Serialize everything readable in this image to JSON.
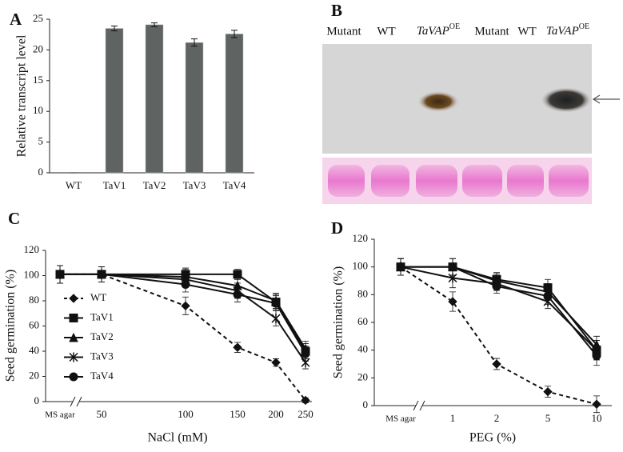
{
  "chart_data": [
    {
      "type": "bar",
      "panel": "A",
      "ylabel": "Relative transcript level",
      "categories": [
        "WT",
        "TaV1",
        "TaV2",
        "TaV3",
        "TaV4"
      ],
      "values": [
        0,
        23.5,
        24.1,
        21.2,
        22.6
      ],
      "errors": [
        0,
        0.4,
        0.3,
        0.6,
        0.6
      ],
      "color": "#5f6462",
      "ylim": [
        0,
        25
      ],
      "yticks": [
        0,
        5,
        10,
        15,
        20,
        25
      ]
    },
    {
      "type": "blot",
      "panel": "B",
      "lanes": [
        "Mutant",
        "WT",
        {
          "text": "TaVAP",
          "sup": "OE"
        },
        "Mutant",
        "WT",
        {
          "text": "TaVAP",
          "sup": "OE"
        }
      ]
    },
    {
      "type": "line",
      "panel": "C",
      "ylabel": "Seed germination (%)",
      "xlabel": "NaCl (mM)",
      "categories": [
        "MS agar",
        "50",
        "100",
        "150",
        "200",
        "250"
      ],
      "ylim": [
        0,
        120
      ],
      "yticks": [
        0,
        20,
        40,
        60,
        80,
        100,
        120
      ],
      "legend": "center left",
      "series": [
        {
          "name": "WT",
          "color": "#111",
          "marker": "diamond",
          "dashed": true,
          "values": [
            101,
            101,
            76,
            43,
            31,
            1
          ],
          "errors": [
            7,
            6,
            7,
            4,
            3,
            2
          ]
        },
        {
          "name": "TaV1",
          "color": "#111",
          "marker": "square",
          "dashed": false,
          "values": [
            101,
            101,
            101,
            101,
            79,
            40
          ],
          "errors": [
            7,
            6,
            5,
            4,
            6,
            6
          ]
        },
        {
          "name": "TaV2",
          "color": "#111",
          "marker": "triangle",
          "dashed": false,
          "values": [
            101,
            101,
            99,
            92,
            80,
            42
          ],
          "errors": [
            7,
            6,
            6,
            5,
            6,
            6
          ]
        },
        {
          "name": "TaV3",
          "color": "#111",
          "marker": "star",
          "dashed": false,
          "values": [
            101,
            101,
            97,
            88,
            66,
            31
          ],
          "errors": [
            7,
            6,
            6,
            6,
            6,
            5
          ]
        },
        {
          "name": "TaV4",
          "color": "#111",
          "marker": "circle",
          "dashed": false,
          "values": [
            101,
            101,
            93,
            85,
            78,
            38
          ],
          "errors": [
            7,
            6,
            6,
            6,
            6,
            6
          ]
        }
      ]
    },
    {
      "type": "line",
      "panel": "D",
      "ylabel": "Seed germination (%)",
      "xlabel": "PEG (%)",
      "categories": [
        "MS agar",
        "1",
        "2",
        "5",
        "10"
      ],
      "ylim": [
        0,
        120
      ],
      "yticks": [
        0,
        20,
        40,
        60,
        80,
        100,
        120
      ],
      "series": [
        {
          "name": "WT",
          "color": "#111",
          "marker": "diamond",
          "dashed": true,
          "values": [
            100,
            75,
            30,
            10,
            1
          ],
          "errors": [
            6,
            7,
            4,
            4,
            6
          ]
        },
        {
          "name": "TaV1",
          "color": "#111",
          "marker": "square",
          "dashed": false,
          "values": [
            100,
            100,
            91,
            85,
            40
          ],
          "errors": [
            6,
            6,
            5,
            6,
            7
          ]
        },
        {
          "name": "TaV2",
          "color": "#111",
          "marker": "triangle",
          "dashed": false,
          "values": [
            100,
            100,
            90,
            82,
            44
          ],
          "errors": [
            6,
            6,
            5,
            6,
            6
          ]
        },
        {
          "name": "TaV3",
          "color": "#111",
          "marker": "star",
          "dashed": false,
          "values": [
            100,
            92,
            88,
            75,
            40
          ],
          "errors": [
            6,
            7,
            5,
            5,
            7
          ]
        },
        {
          "name": "TaV4",
          "color": "#111",
          "marker": "circle",
          "dashed": false,
          "values": [
            100,
            100,
            86,
            79,
            36
          ],
          "errors": [
            6,
            6,
            5,
            6,
            7
          ]
        }
      ]
    }
  ]
}
